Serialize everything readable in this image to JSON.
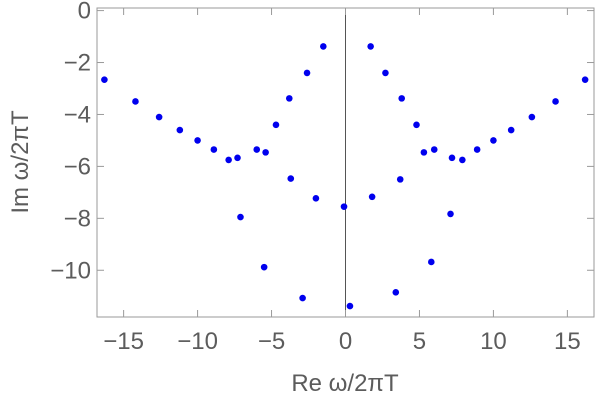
{
  "chart_data": {
    "type": "scatter",
    "xlabel": "Re ω/2πT",
    "ylabel": "Im ω/2πT",
    "xlim": [
      -16.8,
      16.8
    ],
    "ylim": [
      -11.8,
      0.1
    ],
    "x_ticks": [
      -15,
      -10,
      -5,
      0,
      5,
      10,
      15
    ],
    "x_tick_labels": [
      "−15",
      "−10",
      "−5",
      "0",
      "5",
      "10",
      "15"
    ],
    "y_ticks": [
      0,
      -2,
      -4,
      -6,
      -8,
      -10
    ],
    "y_tick_labels": [
      "0",
      "−2",
      "−4",
      "−6",
      "−8",
      "−10"
    ],
    "grid": false,
    "point_color": "#0000ee",
    "series": [
      {
        "points": [
          [
            -16.3,
            -2.66
          ],
          [
            -14.2,
            -3.5
          ],
          [
            -12.6,
            -4.1
          ],
          [
            -11.2,
            -4.6
          ],
          [
            -10.0,
            -5.0
          ],
          [
            -8.9,
            -5.35
          ],
          [
            -7.9,
            -5.75
          ],
          [
            -7.3,
            -5.67
          ],
          [
            -6.0,
            -5.35
          ],
          [
            -5.4,
            -5.46
          ],
          [
            -4.7,
            -4.4
          ],
          [
            -3.8,
            -3.38
          ],
          [
            -2.6,
            -2.4
          ],
          [
            -1.5,
            -1.38
          ],
          [
            -3.7,
            -6.47
          ],
          [
            -2.0,
            -7.23
          ],
          [
            -0.1,
            -7.55
          ],
          [
            -7.1,
            -7.95
          ],
          [
            -5.5,
            -9.88
          ],
          [
            -2.9,
            -11.07
          ],
          [
            0.3,
            -11.38
          ],
          [
            1.7,
            -1.38
          ],
          [
            2.7,
            -2.4
          ],
          [
            3.8,
            -3.38
          ],
          [
            4.8,
            -4.4
          ],
          [
            5.3,
            -5.46
          ],
          [
            6.0,
            -5.35
          ],
          [
            7.2,
            -5.67
          ],
          [
            7.9,
            -5.75
          ],
          [
            8.9,
            -5.35
          ],
          [
            10.0,
            -5.0
          ],
          [
            11.2,
            -4.6
          ],
          [
            12.6,
            -4.1
          ],
          [
            14.2,
            -3.5
          ],
          [
            16.2,
            -2.66
          ],
          [
            1.8,
            -7.17
          ],
          [
            3.7,
            -6.5
          ],
          [
            7.1,
            -7.83
          ],
          [
            3.4,
            -10.85
          ],
          [
            5.8,
            -9.68
          ]
        ]
      }
    ]
  }
}
